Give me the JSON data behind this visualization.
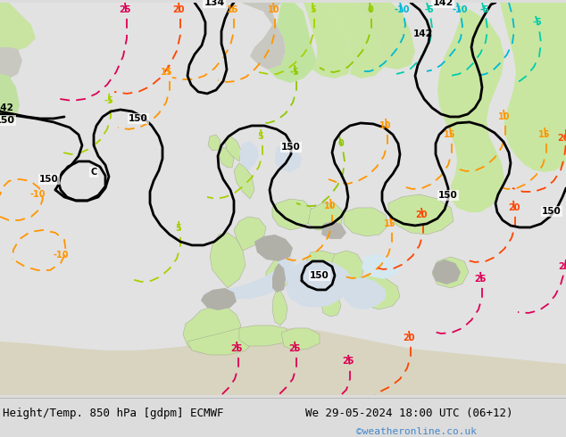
{
  "title_left": "Height/Temp. 850 hPa [gdpm] ECMWF",
  "title_right": "We 29-05-2024 18:00 UTC (06+12)",
  "copyright": "©weatheronline.co.uk",
  "fig_width": 6.34,
  "fig_height": 4.9,
  "dpi": 100,
  "bg_ocean": "#e8e8e8",
  "bg_land_green": "#c8e6a0",
  "bg_land_gray": "#b8b8b0",
  "bg_land_light": "#d8e8b8",
  "bottom_bar": "#dcdcdc",
  "title_color": "#000000",
  "copyright_color": "#4488cc"
}
